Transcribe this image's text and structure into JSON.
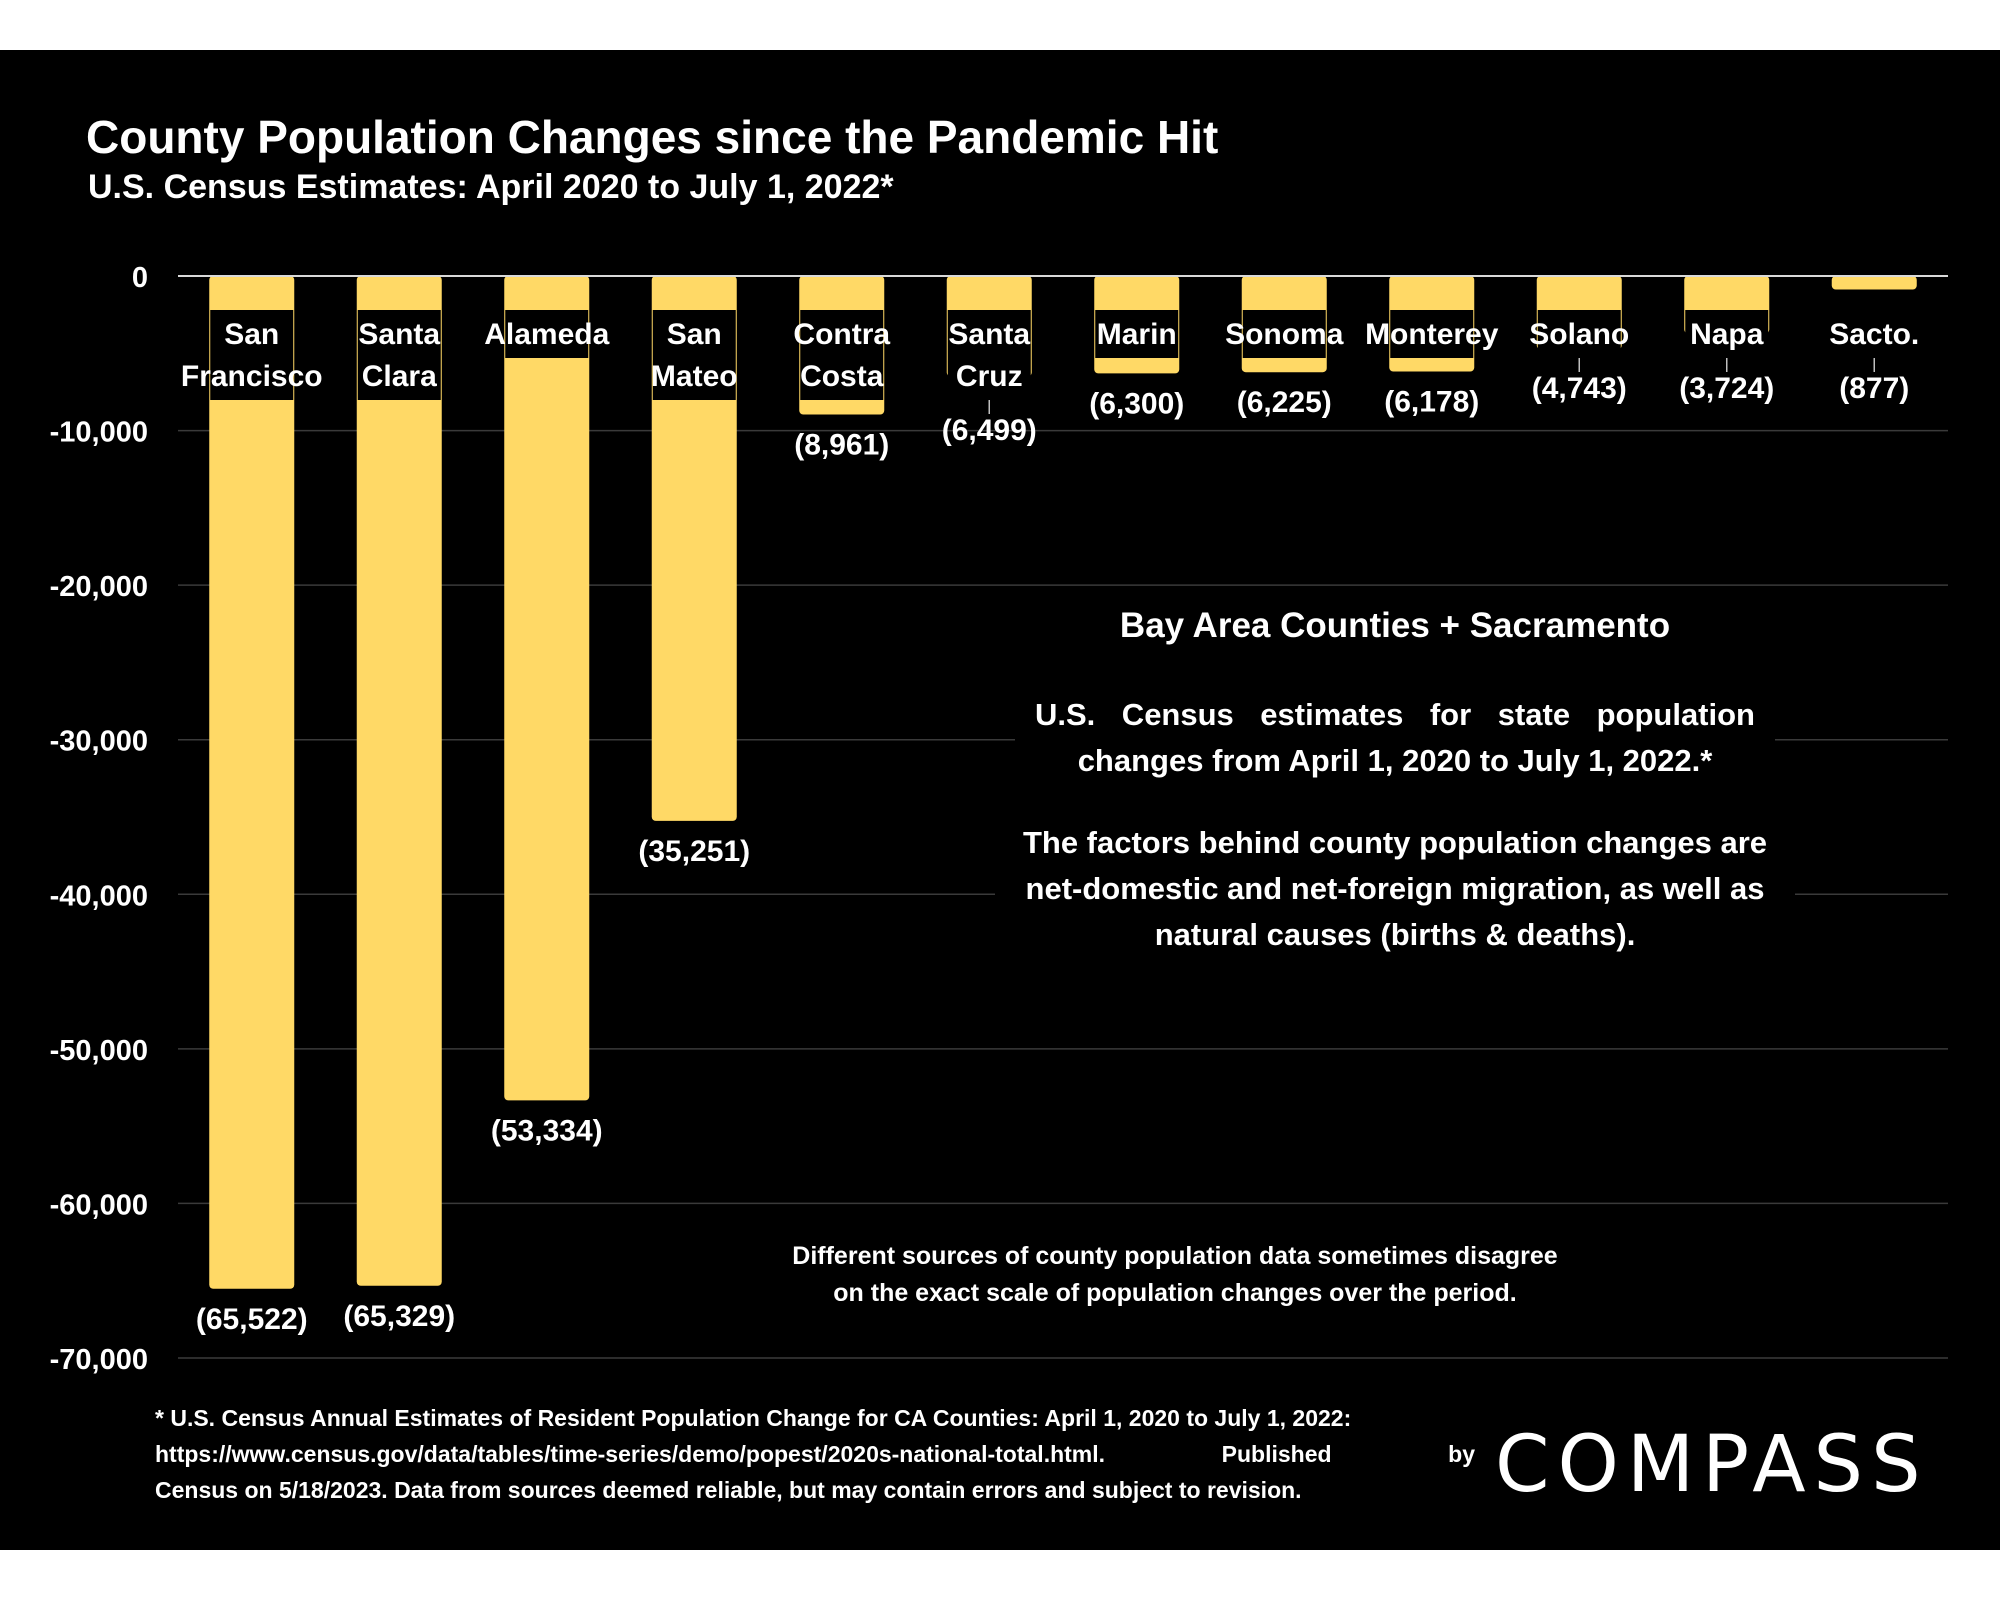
{
  "chart_data": {
    "type": "bar",
    "title": "County Population Changes since the Pandemic Hit",
    "subtitle": "U.S. Census Estimates: April 2020 to July 1, 2022*",
    "categories": [
      [
        "San",
        "Francisco"
      ],
      [
        "Santa",
        "Clara"
      ],
      [
        "Alameda"
      ],
      [
        "San",
        "Mateo"
      ],
      [
        "Contra",
        "Costa"
      ],
      [
        "Santa",
        "Cruz"
      ],
      [
        "Marin"
      ],
      [
        "Sonoma"
      ],
      [
        "Monterey"
      ],
      [
        "Solano"
      ],
      [
        "Napa"
      ],
      [
        "Sacto."
      ]
    ],
    "values": [
      -65522,
      -65329,
      -53334,
      -35251,
      -8961,
      -6499,
      -6300,
      -6225,
      -6178,
      -4743,
      -3724,
      -877
    ],
    "data_labels": [
      "(65,522)",
      "(65,329)",
      "(53,334)",
      "(35,251)",
      "(8,961)",
      "(6,499)",
      "(6,300)",
      "(6,225)",
      "(6,178)",
      "(4,743)",
      "(3,724)",
      "(877)"
    ],
    "yticks": [
      0,
      -10000,
      -20000,
      -30000,
      -40000,
      -50000,
      -60000,
      -70000
    ],
    "ytick_labels": [
      "0",
      "-10,000",
      "-20,000",
      "-30,000",
      "-40,000",
      "-50,000",
      "-60,000",
      "-70,000"
    ],
    "ylim": [
      -70000,
      0
    ],
    "grid": true,
    "bar_color": "#FFD966",
    "background": "#000000"
  },
  "note": {
    "heading": "Bay Area Counties + Sacramento",
    "paragraph1": "U.S. Census estimates for state population changes from April 1, 2020 to July 1, 2022.*",
    "paragraph2": "The factors behind county population changes are net-domestic and net-foreign migration, as well as natural causes (births & deaths)."
  },
  "disagree_note": {
    "line1": "Different sources of county population data sometimes disagree",
    "line2": "on the exact scale of population changes over the period."
  },
  "footnote": {
    "line1": "* U.S. Census Annual Estimates of Resident Population Change for CA Counties: April 1, 2020 to July 1, 2022:",
    "line2": "https://www.census.gov/data/tables/time-series/demo/popest/2020s-national-total.html. Published by",
    "line3": "Census on 5/18/2023. Data from sources deemed reliable, but may contain errors and subject to revision."
  },
  "logo": {
    "text": "COMPASS"
  }
}
